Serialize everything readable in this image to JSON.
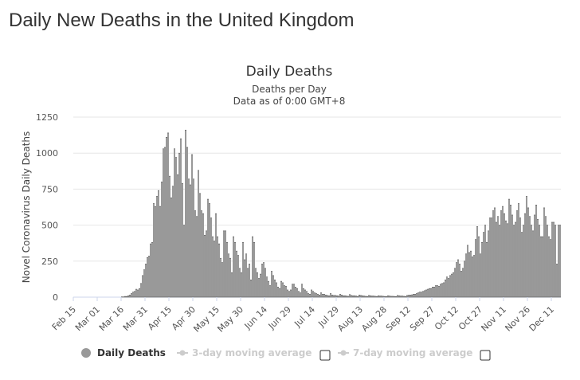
{
  "page": {
    "heading": "Daily New Deaths in the United Kingdom"
  },
  "colors": {
    "bar_fill": "#ffffff",
    "bar_stroke": "#555555",
    "grid": "#e6e6e6",
    "axis": "#ccd6eb",
    "legend_active": "#333333",
    "legend_inactive": "#cccccc",
    "marker_active": "#999999"
  },
  "legend": {
    "items": [
      {
        "label": "Daily Deaths",
        "active": true,
        "has_checkbox": false,
        "icon": "circle-marker-icon"
      },
      {
        "label": "3-day moving average",
        "active": false,
        "has_checkbox": true,
        "icon": "line-marker-icon"
      },
      {
        "label": "7-day moving average",
        "active": false,
        "has_checkbox": true,
        "icon": "line-marker-icon"
      }
    ]
  },
  "chart_data": {
    "type": "bar",
    "title": "Daily Deaths",
    "subtitle_lines": [
      "Deaths per Day",
      "Data as of 0:00 GMT+8"
    ],
    "ylabel": "Novel Coronavirus Daily Deaths",
    "xlabel": "",
    "ylim": [
      0,
      1250
    ],
    "yticks": [
      0,
      250,
      500,
      750,
      1000,
      1250
    ],
    "grid": true,
    "legend_position": "bottom",
    "x_start": "Feb 15",
    "x_end": "Dec 15",
    "xtick_labels": [
      "Feb 15",
      "Mar 01",
      "Mar 16",
      "Mar 31",
      "Apr 15",
      "Apr 30",
      "May 15",
      "May 30",
      "Jun 14",
      "Jun 29",
      "Jul 14",
      "Jul 29",
      "Aug 13",
      "Aug 28",
      "Sep 12",
      "Sep 27",
      "Oct 12",
      "Oct 27",
      "Nov 11",
      "Nov 26",
      "Dec 11"
    ],
    "series": [
      {
        "name": "Daily Deaths",
        "values": [
          0,
          0,
          0,
          0,
          0,
          0,
          0,
          0,
          0,
          0,
          0,
          0,
          0,
          0,
          0,
          0,
          0,
          0,
          0,
          0,
          0,
          0,
          0,
          0,
          0,
          0,
          0,
          0,
          0,
          0,
          2,
          2,
          5,
          5,
          10,
          15,
          25,
          35,
          40,
          55,
          50,
          60,
          95,
          150,
          190,
          230,
          275,
          285,
          370,
          380,
          650,
          630,
          700,
          740,
          630,
          800,
          1030,
          1040,
          1110,
          1140,
          840,
          690,
          770,
          1030,
          970,
          850,
          1000,
          1100,
          790,
          500,
          1160,
          1040,
          820,
          780,
          990,
          820,
          600,
          560,
          880,
          720,
          600,
          580,
          430,
          460,
          680,
          650,
          550,
          420,
          390,
          580,
          420,
          370,
          270,
          240,
          460,
          460,
          380,
          300,
          270,
          170,
          420,
          380,
          320,
          290,
          200,
          170,
          380,
          260,
          300,
          200,
          230,
          120,
          420,
          380,
          200,
          170,
          130,
          160,
          230,
          240,
          200,
          140,
          110,
          80,
          180,
          150,
          120,
          100,
          70,
          60,
          110,
          100,
          80,
          75,
          50,
          40,
          50,
          90,
          90,
          70,
          60,
          40,
          30,
          90,
          60,
          50,
          40,
          25,
          20,
          50,
          40,
          30,
          25,
          20,
          15,
          30,
          20,
          20,
          15,
          12,
          10,
          25,
          15,
          12,
          12,
          10,
          8,
          20,
          15,
          10,
          10,
          8,
          6,
          18,
          12,
          10,
          10,
          8,
          5,
          15,
          12,
          10,
          8,
          6,
          5,
          12,
          10,
          8,
          8,
          6,
          5,
          10,
          8,
          8,
          6,
          5,
          4,
          10,
          8,
          6,
          6,
          5,
          4,
          12,
          10,
          8,
          8,
          6,
          5,
          12,
          14,
          15,
          16,
          20,
          20,
          25,
          30,
          35,
          35,
          40,
          45,
          50,
          55,
          60,
          60,
          70,
          70,
          80,
          80,
          75,
          90,
          95,
          100,
          120,
          140,
          130,
          150,
          160,
          170,
          200,
          240,
          260,
          230,
          180,
          200,
          250,
          300,
          360,
          310,
          320,
          280,
          290,
          400,
          490,
          420,
          300,
          380,
          450,
          500,
          380,
          460,
          550,
          550,
          600,
          620,
          520,
          560,
          500,
          600,
          630,
          580,
          530,
          510,
          680,
          640,
          570,
          500,
          520,
          600,
          650,
          550,
          450,
          500,
          580,
          700,
          620,
          560,
          500,
          460,
          570,
          640,
          540,
          500,
          420,
          420,
          620,
          560,
          500,
          420,
          400,
          520,
          520,
          500,
          230,
          500,
          500
        ]
      }
    ]
  }
}
